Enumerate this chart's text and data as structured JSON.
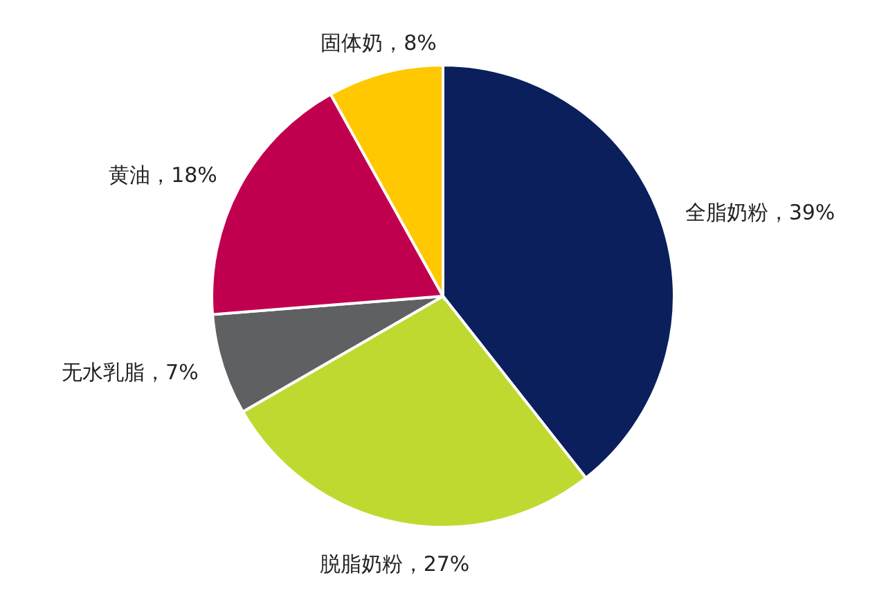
{
  "chart_data": {
    "type": "pie",
    "categories": [
      "全脂奶粉",
      "脱脂奶粉",
      "无水乳脂",
      "黄油",
      "固体奶"
    ],
    "values": [
      39,
      27,
      7,
      18,
      8
    ],
    "value_labels": [
      "39%",
      "27%",
      "7%",
      "18%",
      "8%"
    ],
    "colors": [
      "#0a1f5c",
      "#c0d930",
      "#5f6062",
      "#c0004e",
      "#ffc800"
    ]
  }
}
